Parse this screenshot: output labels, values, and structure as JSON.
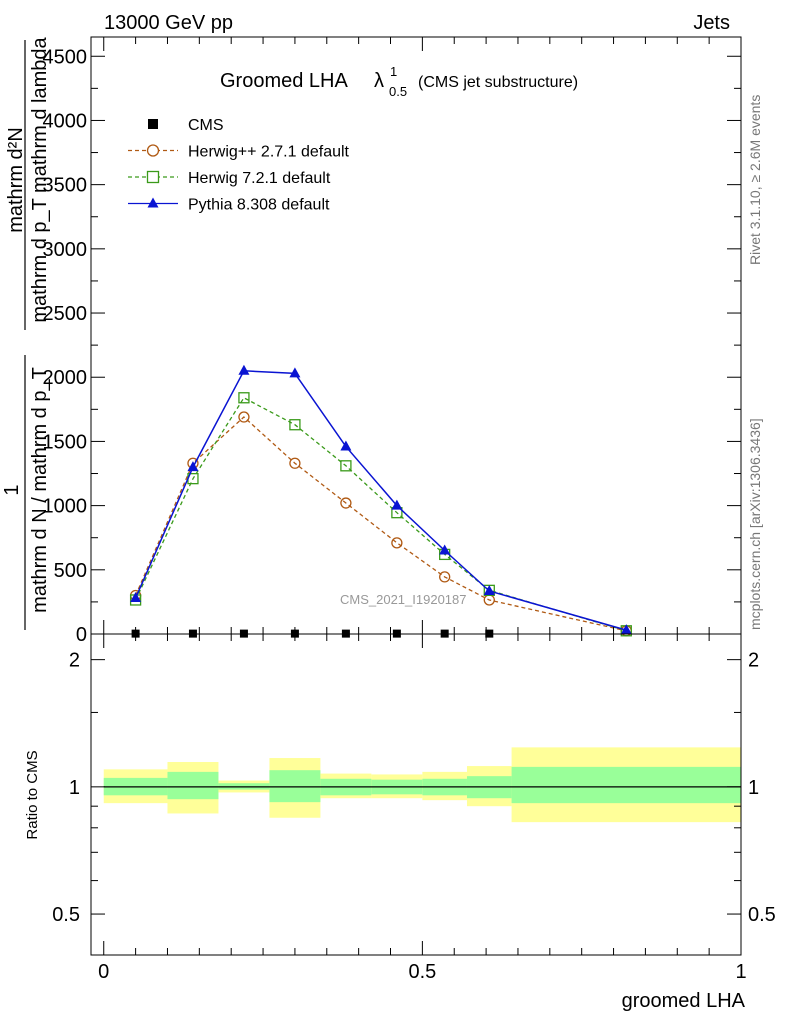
{
  "header": {
    "energy_label": "13000 GeV pp",
    "category_label": "Jets"
  },
  "side_labels": {
    "rivet": "Rivet 3.1.10, ≥ 2.6M events",
    "mcplots": "mcplots.cern.ch [arXiv:1306.3436]"
  },
  "watermark": "CMS_2021_I1920187",
  "chart_data": [
    {
      "type": "line",
      "panel": "main",
      "title": "Groomed LHA",
      "title_symbol": "λ",
      "title_superscript": "1",
      "title_subscript": "0.5",
      "subtitle": "(CMS jet substructure)",
      "ylabel_numerator": "mathrm d²N",
      "ylabel_denominator": "mathrm d p_T mathrm d lambda",
      "ylabel_prefix": "1",
      "ylabel_prefix_denominator": "mathrm d N / mathrm d p_T",
      "ylim": [
        0,
        4650
      ],
      "xlim": [
        -0.02,
        1.0
      ],
      "yticks": [
        0,
        500,
        1000,
        1500,
        2000,
        2500,
        3000,
        3500,
        4000,
        4500
      ],
      "ytick_labels": [
        "0",
        "500",
        "1000",
        "1500",
        "2000",
        "2500",
        "3000",
        "3500",
        "4000",
        "4500"
      ],
      "legend_position": "top-left",
      "series": [
        {
          "name": "CMS",
          "style": "data",
          "color": "#000000",
          "marker": "square-filled",
          "x": [
            0.05,
            0.14,
            0.22,
            0.3,
            0.38,
            0.46,
            0.535,
            0.605
          ],
          "y": [
            3,
            3,
            3,
            3,
            3,
            3,
            3,
            3
          ]
        },
        {
          "name": "Herwig++ 2.7.1 default",
          "style": "dashed",
          "color": "#b05a14",
          "marker": "circle-open",
          "x": [
            0.05,
            0.14,
            0.22,
            0.3,
            0.38,
            0.46,
            0.535,
            0.605,
            0.82
          ],
          "y": [
            300,
            1330,
            1690,
            1330,
            1020,
            710,
            445,
            265,
            25
          ]
        },
        {
          "name": "Herwig 7.2.1 default",
          "style": "dashed",
          "color": "#3a9a1a",
          "marker": "square-open",
          "x": [
            0.05,
            0.14,
            0.22,
            0.3,
            0.38,
            0.46,
            0.535,
            0.605,
            0.82
          ],
          "y": [
            265,
            1210,
            1840,
            1630,
            1310,
            945,
            620,
            340,
            25
          ]
        },
        {
          "name": "Pythia 8.308 default",
          "style": "solid",
          "color": "#0a14d2",
          "marker": "triangle-filled",
          "x": [
            0.05,
            0.14,
            0.22,
            0.3,
            0.38,
            0.46,
            0.535,
            0.605,
            0.82
          ],
          "y": [
            280,
            1300,
            2050,
            2030,
            1460,
            1000,
            650,
            335,
            30
          ]
        }
      ]
    },
    {
      "type": "area",
      "panel": "ratio",
      "ylabel": "Ratio to CMS",
      "xlabel": "groomed LHA",
      "ylim": [
        0.4,
        2.3
      ],
      "yscale": "log",
      "xlim": [
        -0.02,
        1.0
      ],
      "yticks": [
        0.5,
        1,
        2
      ],
      "ytick_labels": [
        "0.5",
        "1",
        "2"
      ],
      "xticks": [
        0,
        0.5,
        1
      ],
      "xtick_labels": [
        "0",
        "0.5",
        "1"
      ],
      "reference_line": 1,
      "bins": [
        {
          "x_low": 0.0,
          "x_high": 0.1,
          "inner": [
            0.955,
            1.05
          ],
          "outer": [
            0.915,
            1.1
          ]
        },
        {
          "x_low": 0.1,
          "x_high": 0.18,
          "inner": [
            0.935,
            1.085
          ],
          "outer": [
            0.865,
            1.145
          ]
        },
        {
          "x_low": 0.18,
          "x_high": 0.26,
          "inner": [
            0.985,
            1.02
          ],
          "outer": [
            0.97,
            1.035
          ]
        },
        {
          "x_low": 0.26,
          "x_high": 0.34,
          "inner": [
            0.92,
            1.095
          ],
          "outer": [
            0.845,
            1.17
          ]
        },
        {
          "x_low": 0.34,
          "x_high": 0.42,
          "inner": [
            0.955,
            1.045
          ],
          "outer": [
            0.94,
            1.075
          ]
        },
        {
          "x_low": 0.42,
          "x_high": 0.5,
          "inner": [
            0.96,
            1.04
          ],
          "outer": [
            0.94,
            1.07
          ]
        },
        {
          "x_low": 0.5,
          "x_high": 0.57,
          "inner": [
            0.955,
            1.045
          ],
          "outer": [
            0.93,
            1.085
          ]
        },
        {
          "x_low": 0.57,
          "x_high": 0.64,
          "inner": [
            0.94,
            1.06
          ],
          "outer": [
            0.9,
            1.12
          ]
        },
        {
          "x_low": 0.64,
          "x_high": 1.0,
          "inner": [
            0.915,
            1.115
          ],
          "outer": [
            0.825,
            1.24
          ]
        }
      ],
      "colors": {
        "inner": "#99ff99",
        "outer": "#ffff99"
      }
    }
  ]
}
